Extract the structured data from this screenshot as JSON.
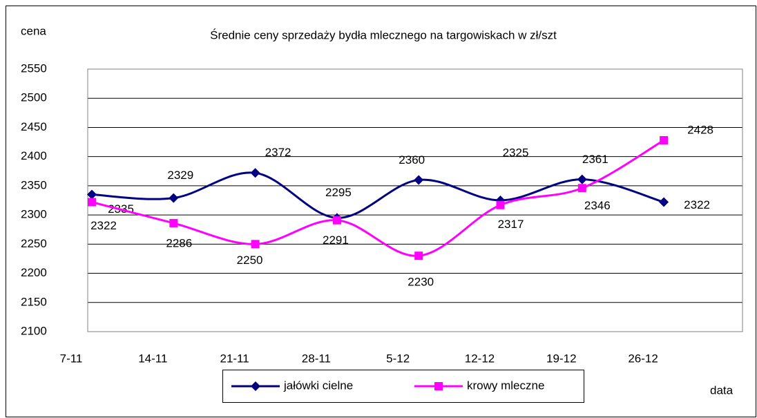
{
  "chart_data": {
    "type": "line",
    "title": "Średnie ceny sprzedaży bydła mlecznego na targowiskach w zł/szt",
    "y_label": "cena",
    "x_label": "data",
    "categories": [
      "7-11",
      "14-11",
      "21-11",
      "28-11",
      "5-12",
      "12-12",
      "19-12",
      "26-12"
    ],
    "series": [
      {
        "name": "jałówki cielne",
        "color": "#000080",
        "marker": "diamond",
        "values": [
          2335,
          2329,
          2372,
          2295,
          2360,
          2325,
          2361,
          2322
        ]
      },
      {
        "name": "krowy mleczne",
        "color": "#ff00ff",
        "marker": "square",
        "values": [
          2322,
          2286,
          2250,
          2291,
          2230,
          2317,
          2346,
          2428
        ]
      }
    ],
    "ylim": [
      2100,
      2550
    ],
    "yticks": [
      2100,
      2150,
      2200,
      2250,
      2300,
      2350,
      2400,
      2450,
      2500,
      2550
    ],
    "grid": true,
    "smooth": true,
    "legend": "bottom"
  }
}
